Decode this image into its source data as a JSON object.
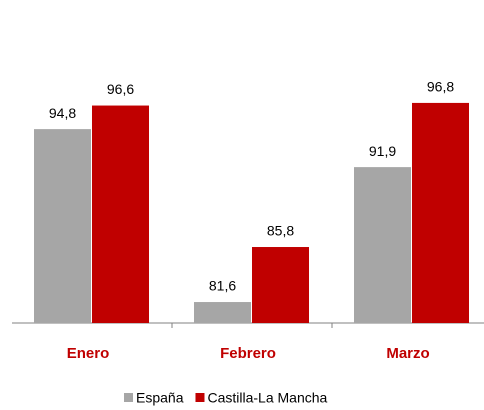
{
  "chart_data": {
    "type": "bar",
    "categories": [
      "Enero",
      "Febrero",
      "Marzo"
    ],
    "series": [
      {
        "name": "España",
        "color": "#a6a6a6",
        "values": [
          94.8,
          81.6,
          91.9
        ],
        "value_labels": [
          "94,8",
          "81,6",
          "91,9"
        ]
      },
      {
        "name": "Castilla-La Mancha",
        "color": "#c00000",
        "values": [
          96.6,
          85.8,
          96.8
        ],
        "value_labels": [
          "96,6",
          "85,8",
          "96,8"
        ]
      }
    ],
    "ylim": [
      80,
      100
    ],
    "legend": "bottom"
  }
}
